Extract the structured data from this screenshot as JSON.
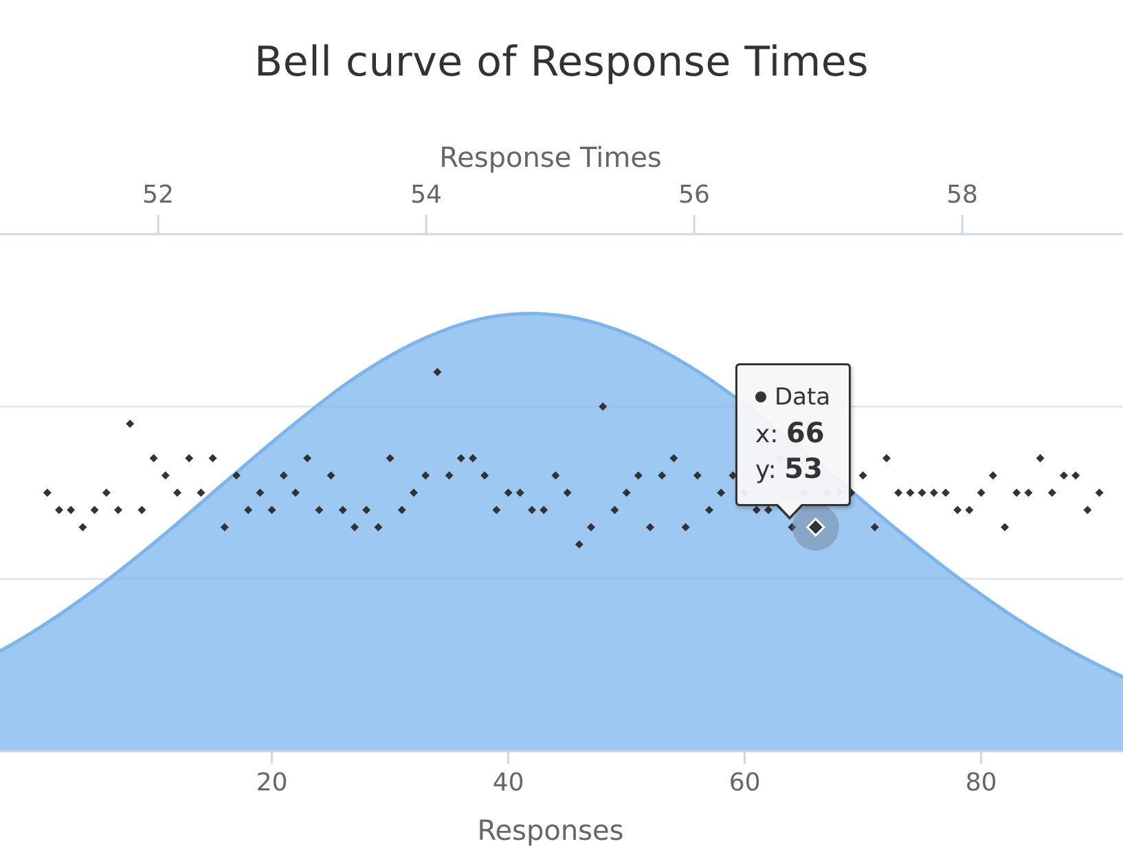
{
  "chart_data": {
    "type": "scatter",
    "title": "Bell curve of Response Times",
    "series": [
      {
        "name": "Data",
        "type": "scatter",
        "color": "#333333",
        "x": [
          1,
          2,
          3,
          4,
          5,
          6,
          7,
          8,
          9,
          10,
          11,
          12,
          13,
          14,
          15,
          16,
          17,
          18,
          19,
          20,
          21,
          22,
          23,
          24,
          25,
          26,
          27,
          28,
          29,
          30,
          31,
          32,
          33,
          34,
          35,
          36,
          37,
          38,
          39,
          40,
          41,
          42,
          43,
          44,
          45,
          46,
          47,
          48,
          49,
          50,
          51,
          52,
          53,
          54,
          55,
          56,
          57,
          58,
          59,
          60,
          61,
          62,
          63,
          64,
          65,
          66,
          67,
          68,
          69,
          70,
          71,
          72,
          73,
          74,
          75,
          76,
          77,
          78,
          79,
          80,
          81,
          82,
          83,
          84,
          85,
          86,
          87,
          88,
          89,
          90
        ],
        "y": [
          55,
          54,
          54,
          53,
          54,
          55,
          54,
          59,
          54,
          57,
          56,
          55,
          57,
          55,
          57,
          53,
          56,
          54,
          55,
          54,
          56,
          55,
          57,
          54,
          56,
          54,
          53,
          54,
          53,
          57,
          54,
          55,
          56,
          62,
          56,
          57,
          57,
          56,
          54,
          55,
          55,
          54,
          54,
          56,
          55,
          52,
          53,
          60,
          54,
          55,
          56,
          53,
          56,
          57,
          53,
          56,
          54,
          55,
          56,
          55,
          54,
          54,
          57,
          53,
          55,
          53,
          55,
          55,
          55,
          56,
          53,
          57,
          55,
          55,
          55,
          55,
          55,
          54,
          54,
          55,
          56,
          53,
          55,
          55,
          57,
          55,
          56,
          56,
          54,
          55
        ]
      },
      {
        "name": "Bell curve",
        "type": "area",
        "color": "#7cb5ec",
        "x": [
          49.0,
          49.5,
          50.0,
          50.5,
          51.0,
          51.5,
          52.0,
          52.5,
          53.0,
          53.5,
          54.0,
          54.5,
          55.0,
          55.5,
          56.0,
          56.5,
          57.0,
          57.5,
          58.0,
          58.5,
          59.0,
          59.5,
          60.0,
          60.5,
          61.0
        ],
        "y": [
          0.021,
          0.034,
          0.054,
          0.082,
          0.119,
          0.166,
          0.221,
          0.281,
          0.34,
          0.393,
          0.432,
          0.454,
          0.455,
          0.436,
          0.399,
          0.349,
          0.292,
          0.233,
          0.178,
          0.13,
          0.091,
          0.06,
          0.038,
          0.023,
          0.013
        ]
      }
    ],
    "x_axis_bottom": {
      "title": "Responses",
      "ticks": [
        20,
        40,
        60,
        80
      ],
      "range": [
        -3,
        92
      ]
    },
    "x_axis_top": {
      "title": "Response Times",
      "ticks": [
        52,
        54,
        56,
        58
      ],
      "range": [
        50.82,
        59.2
      ]
    },
    "y_axis_left": {
      "range": [
        40,
        70
      ],
      "grid": true
    },
    "y_axis_right": {
      "range": [
        0,
        0.54
      ]
    },
    "legend": "none",
    "tooltip": {
      "series": "Data",
      "x_label": "x:",
      "x_value": "66",
      "y_label": "y:",
      "y_value": "53"
    }
  }
}
